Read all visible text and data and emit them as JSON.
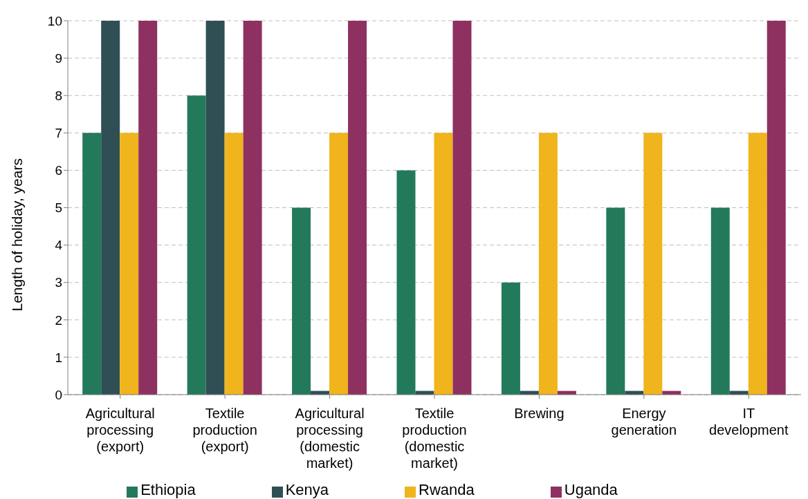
{
  "chart_data": {
    "type": "bar",
    "ylabel": "Length of holiday, years",
    "categories": [
      "Agricultural processing (export)",
      "Textile production (export)",
      "Agricultural processing (domestic market)",
      "Textile production (domestic market)",
      "Brewing",
      "Energy generation",
      "IT development"
    ],
    "series": [
      {
        "name": "Ethiopia",
        "color": "#237a5a",
        "values": [
          7,
          8,
          5,
          6,
          3,
          5,
          5
        ]
      },
      {
        "name": "Kenya",
        "color": "#2f4f55",
        "values": [
          10,
          10,
          0.1,
          0.1,
          0.1,
          0.1,
          0.1
        ]
      },
      {
        "name": "Rwanda",
        "color": "#f0b41c",
        "values": [
          7,
          7,
          7,
          7,
          7,
          7,
          7
        ]
      },
      {
        "name": "Uganda",
        "color": "#8e3160",
        "values": [
          10,
          10,
          10,
          10,
          0.1,
          0.1,
          10
        ]
      }
    ],
    "ylim": [
      0,
      10
    ],
    "yticks": [
      0,
      1,
      2,
      3,
      4,
      5,
      6,
      7,
      8,
      9,
      10
    ],
    "grid": "y",
    "legend": "bottom"
  }
}
